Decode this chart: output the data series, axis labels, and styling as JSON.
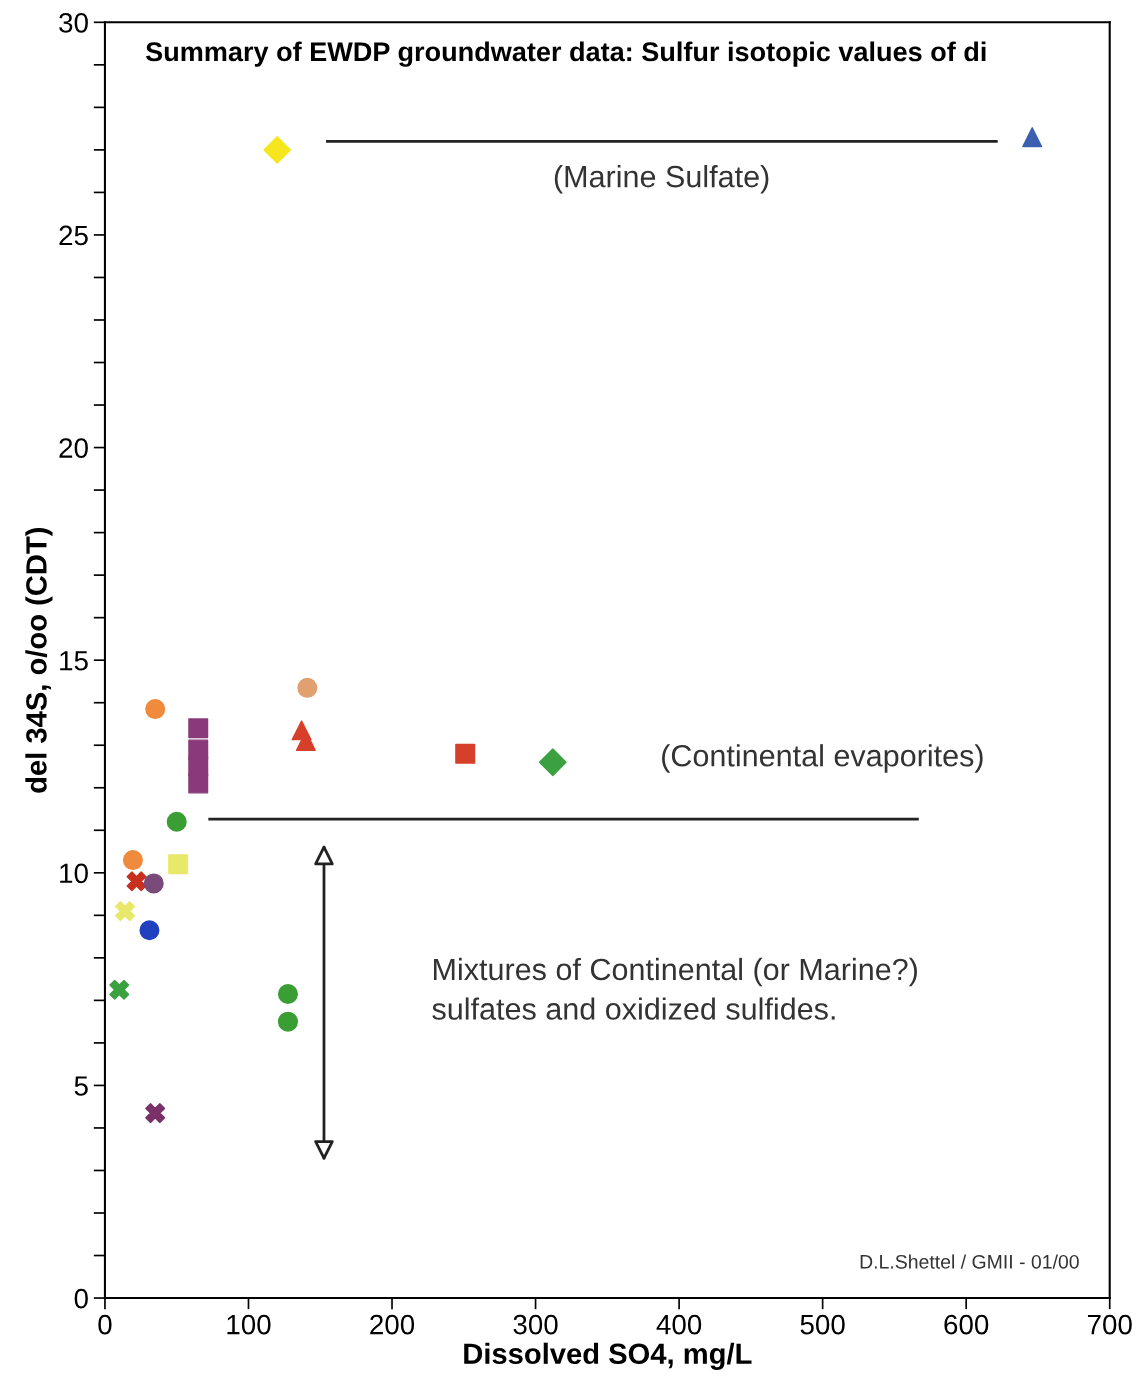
{
  "chart_data": {
    "type": "scatter",
    "title": "Summary of EWDP groundwater data: Sulfur isotopic values of di",
    "xlabel": "Dissolved SO4, mg/L",
    "ylabel": "del 34S, o/oo (CDT)",
    "xlim": [
      0,
      700
    ],
    "xticks": [
      0,
      100,
      200,
      300,
      400,
      500,
      600,
      700
    ],
    "ylim": [
      0,
      30
    ],
    "yticks": [
      0,
      {
        "value": 1,
        "label": null
      },
      {
        "value": 2,
        "label": null
      },
      {
        "value": 3,
        "label": null
      },
      {
        "value": 4,
        "label": null
      },
      5,
      {
        "value": 6,
        "label": null
      },
      {
        "value": 7,
        "label": null
      },
      {
        "value": 8,
        "label": null
      },
      {
        "value": 9,
        "label": null
      },
      10,
      {
        "value": 11,
        "label": null
      },
      {
        "value": 12,
        "label": null
      },
      {
        "value": 13,
        "label": null
      },
      {
        "value": 14,
        "label": null
      },
      15,
      {
        "value": 16,
        "label": null
      },
      {
        "value": 17,
        "label": null
      },
      {
        "value": 18,
        "label": null
      },
      {
        "value": 19,
        "label": null
      },
      20,
      {
        "value": 21,
        "label": null
      },
      {
        "value": 22,
        "label": null
      },
      {
        "value": 23,
        "label": null
      },
      {
        "value": 24,
        "label": null
      },
      25,
      {
        "value": 26,
        "label": null
      },
      {
        "value": 27,
        "label": null
      },
      {
        "value": 28,
        "label": null
      },
      {
        "value": 29,
        "label": null
      },
      30
    ],
    "grid": false,
    "legend": false,
    "series": [
      {
        "color": "#f5e61e",
        "marker": "diamond",
        "x": [
          120
        ],
        "values": [
          27.0
        ]
      },
      {
        "color": "#3a5fb0",
        "marker": "triangle",
        "x": [
          646
        ],
        "values": [
          27.3
        ]
      },
      {
        "color": "#f08a3c",
        "marker": "circle",
        "x": [
          35
        ],
        "values": [
          13.85
        ]
      },
      {
        "color": "#8a3a7a",
        "marker": "square",
        "x": [
          65,
          65,
          65,
          65
        ],
        "values": [
          13.4,
          12.9,
          12.5,
          12.1
        ]
      },
      {
        "color": "#e0a070",
        "marker": "circle",
        "x": [
          141
        ],
        "values": [
          14.35
        ]
      },
      {
        "color": "#d6402a",
        "marker": "triangle",
        "x": [
          137,
          140
        ],
        "values": [
          13.35,
          13.1
        ]
      },
      {
        "color": "#d6402a",
        "marker": "square",
        "x": [
          251
        ],
        "values": [
          12.8
        ]
      },
      {
        "color": "#3aa040",
        "marker": "diamond",
        "x": [
          312
        ],
        "values": [
          12.6
        ]
      },
      {
        "color": "#3a9e35",
        "marker": "circle",
        "x": [
          50,
          127.5,
          127.5
        ],
        "values": [
          11.2,
          7.15,
          6.5
        ]
      },
      {
        "color": "#f08a3c",
        "marker": "circle",
        "x": [
          19.5
        ],
        "values": [
          10.3
        ]
      },
      {
        "color": "#e8e86a",
        "marker": "square",
        "x": [
          51
        ],
        "values": [
          10.2
        ]
      },
      {
        "color": "#c83020",
        "marker": "cross",
        "x": [
          22
        ],
        "values": [
          9.8
        ]
      },
      {
        "color": "#7a4a7a",
        "marker": "circle",
        "x": [
          34
        ],
        "values": [
          9.75
        ]
      },
      {
        "color": "#e8e86a",
        "marker": "cross",
        "x": [
          14
        ],
        "values": [
          9.1
        ]
      },
      {
        "color": "#2040c0",
        "marker": "circle",
        "x": [
          31
        ],
        "values": [
          8.65
        ]
      },
      {
        "color": "#3aa040",
        "marker": "cross",
        "x": [
          10
        ],
        "values": [
          7.25
        ]
      },
      {
        "color": "#7a3068",
        "marker": "cross",
        "x": [
          35
        ],
        "values": [
          4.35
        ]
      },
      {
        "type": "line",
        "color": "#222222",
        "marker": "none",
        "x": [
          155,
          621
        ],
        "values": [
          27.2,
          27.2
        ]
      },
      {
        "type": "line",
        "color": "#222222",
        "marker": "none",
        "x": [
          73,
          566
        ],
        "values": [
          11.26,
          11.26
        ]
      }
    ],
    "annotations": [
      "(Marine Sulfate)",
      "(Continental evaporites)",
      "Mixtures of Continental (or Marine?)\nsulfates and oxidized sulfides.",
      "D.L.Shettel / GMII - 01/00"
    ]
  }
}
